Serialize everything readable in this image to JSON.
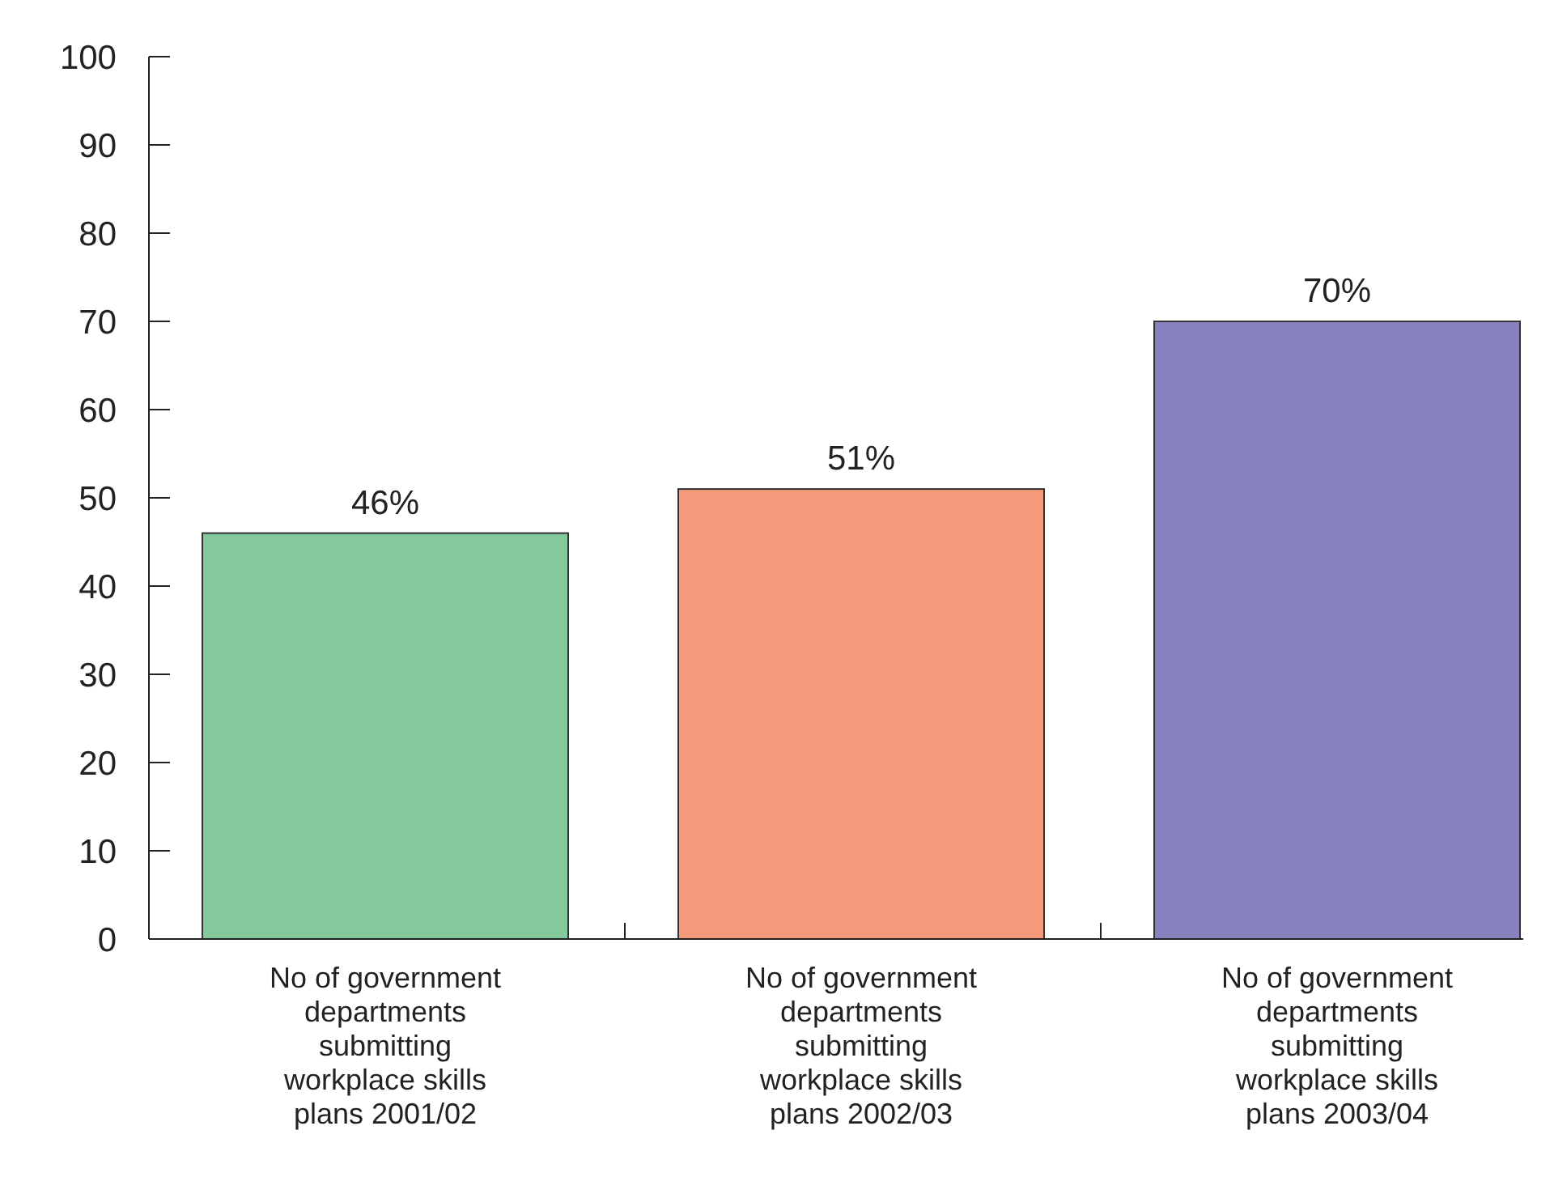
{
  "chart_data": {
    "type": "bar",
    "categories": [
      "No of government departments submitting workplace skills plans 2001/02",
      "No of government departments submitting workplace skills plans 2002/03",
      "No of government departments submitting workplace skills plans 2003/04"
    ],
    "values": [
      46,
      51,
      70
    ],
    "colors": [
      "#84c99b",
      "#f4997a",
      "#8782bd"
    ],
    "value_labels": [
      "46%",
      "51%",
      "70%"
    ],
    "ylim": [
      0,
      100
    ],
    "yticks": [
      0,
      10,
      20,
      30,
      40,
      50,
      60,
      70,
      80,
      90,
      100
    ]
  }
}
